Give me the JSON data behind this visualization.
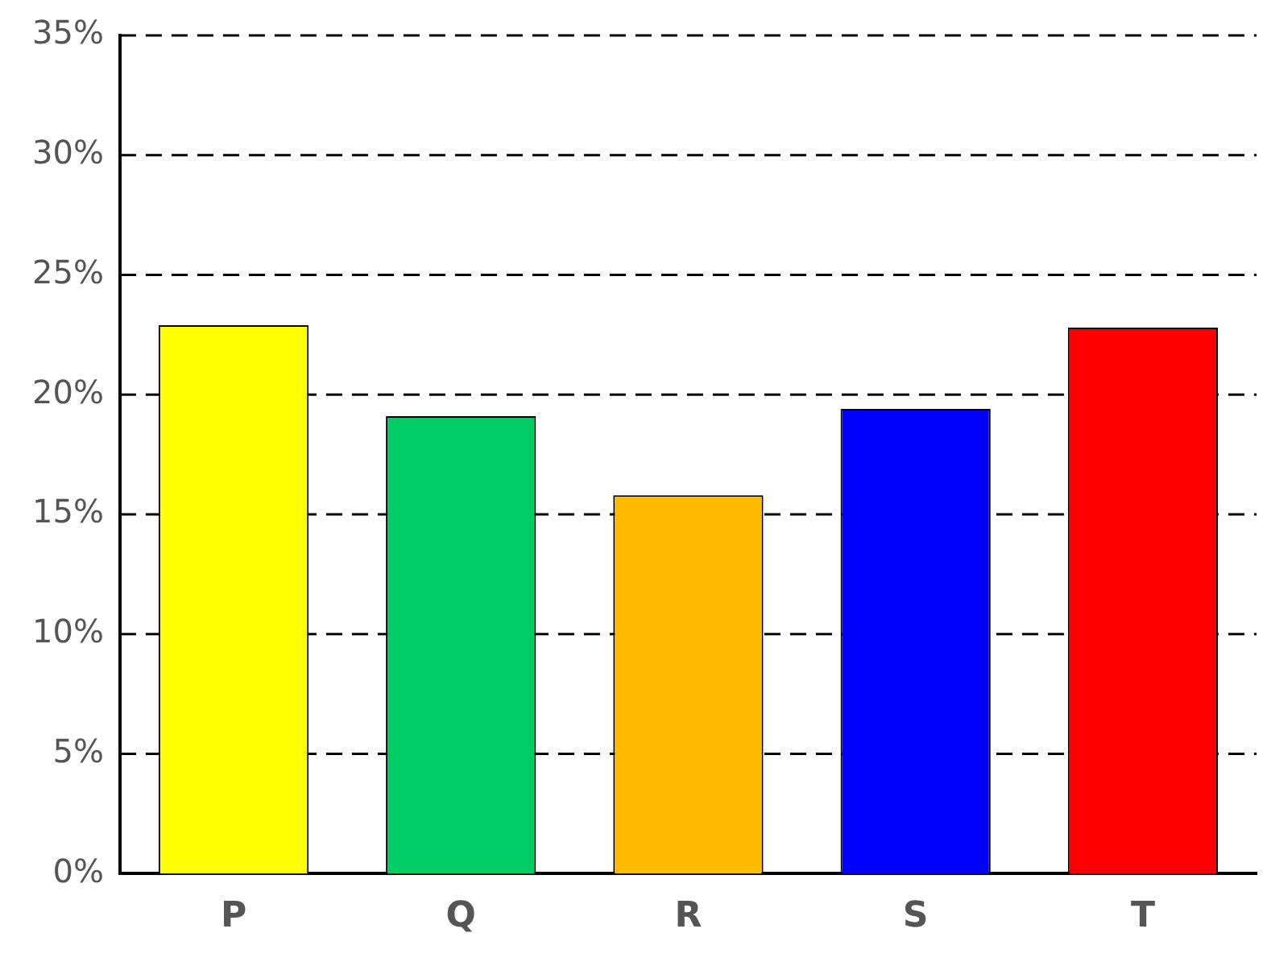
{
  "chart_data": {
    "type": "bar",
    "categories": [
      "P",
      "Q",
      "R",
      "S",
      "T"
    ],
    "values": [
      22.9,
      19.1,
      15.8,
      19.4,
      22.8
    ],
    "colors": [
      "#ffff00",
      "#00cc66",
      "#ffbb00",
      "#0000ff",
      "#ff0000"
    ],
    "ylim": [
      0,
      35
    ],
    "yticks": [
      {
        "value": 0,
        "label": "0%"
      },
      {
        "value": 5,
        "label": "5%"
      },
      {
        "value": 10,
        "label": "10%"
      },
      {
        "value": 15,
        "label": "15%"
      },
      {
        "value": 20,
        "label": "20%"
      },
      {
        "value": 25,
        "label": "25%"
      },
      {
        "value": 30,
        "label": "30%"
      },
      {
        "value": 35,
        "label": "35%"
      }
    ],
    "grid": "y",
    "line_style": "dashed"
  }
}
